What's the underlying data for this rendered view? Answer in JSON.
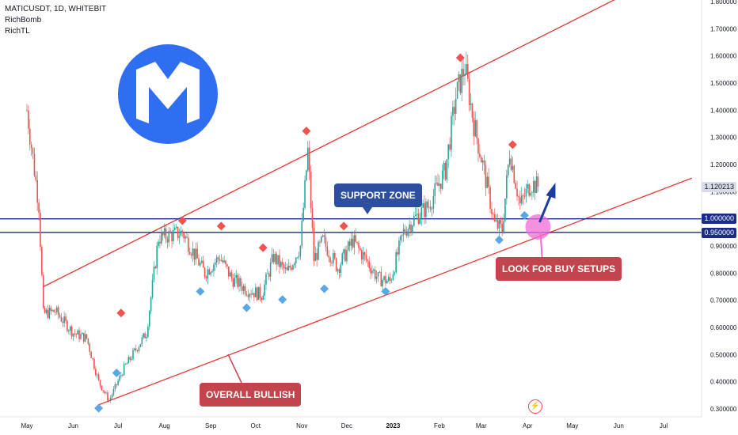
{
  "legend": {
    "symbol_line": "MATICUSDT, 1D, WHITEBIT",
    "indicator_1": "RichBomb",
    "indicator_2": "RichTL"
  },
  "logo": {
    "icon": "polygon-m-logo-icon",
    "color": "#2f6ef0"
  },
  "annotations": {
    "support_zone": "SUPPORT ZONE",
    "buy_setups": "LOOK FOR BUY SETUPS",
    "overall_bullish": "OVERALL BULLISH"
  },
  "price_tags": {
    "level_1": "1.000000",
    "level_095": "0.950000",
    "last": "1.120213"
  },
  "colors": {
    "up": "#26a69a",
    "down": "#ef5350",
    "channel": "#e53935",
    "support": "#1a2c8a",
    "buy_marker": "#5aa7e8",
    "sell_marker": "#ef5350",
    "highlight": "#f06bd6"
  },
  "chart_data": {
    "type": "line",
    "title": "MATICUSDT, 1D, WHITEBIT",
    "ylim": [
      0.28,
      1.8
    ],
    "y_ticks": [
      "1.800000",
      "1.700000",
      "1.600000",
      "1.500000",
      "1.400000",
      "1.300000",
      "1.200000",
      "1.100000",
      "1.000000",
      "0.900000",
      "0.800000",
      "0.700000",
      "0.600000",
      "0.500000",
      "0.400000",
      "0.300000"
    ],
    "x_ticks": [
      "May",
      "Jun",
      "Jul",
      "Aug",
      "Sep",
      "Oct",
      "Nov",
      "Dec",
      "2023",
      "Feb",
      "Mar",
      "Apr",
      "May",
      "Jun",
      "Jul"
    ],
    "x": [
      "2022-05-01",
      "2022-05-09",
      "2022-05-12",
      "2022-05-20",
      "2022-06-01",
      "2022-06-10",
      "2022-06-18",
      "2022-06-25",
      "2022-07-05",
      "2022-07-20",
      "2022-07-28",
      "2022-08-13",
      "2022-08-20",
      "2022-08-28",
      "2022-09-07",
      "2022-09-15",
      "2022-09-25",
      "2022-10-05",
      "2022-10-13",
      "2022-10-22",
      "2022-10-31",
      "2022-11-05",
      "2022-11-09",
      "2022-11-15",
      "2022-11-25",
      "2022-12-05",
      "2022-12-15",
      "2022-12-22",
      "2022-12-30",
      "2023-01-08",
      "2023-01-15",
      "2023-01-25",
      "2023-02-05",
      "2023-02-12",
      "2023-02-18",
      "2023-02-24",
      "2023-03-02",
      "2023-03-10",
      "2023-03-15",
      "2023-03-20",
      "2023-03-27",
      "2023-04-03",
      "2023-04-08"
    ],
    "series": [
      {
        "values": [
          1.4,
          1.05,
          0.65,
          0.66,
          0.58,
          0.56,
          0.4,
          0.33,
          0.45,
          0.58,
          0.93,
          0.95,
          0.88,
          0.8,
          0.86,
          0.78,
          0.74,
          0.72,
          0.86,
          0.8,
          0.9,
          1.25,
          0.85,
          0.92,
          0.82,
          0.92,
          0.84,
          0.78,
          0.77,
          0.95,
          1.0,
          1.05,
          1.18,
          1.45,
          1.56,
          1.35,
          1.2,
          0.98,
          0.96,
          1.25,
          1.05,
          1.13,
          1.12
        ]
      }
    ],
    "channel": {
      "upper": [
        [
          "2022-05-12",
          0.75
        ],
        [
          "2023-07-20",
          1.95
        ]
      ],
      "lower": [
        [
          "2022-06-18",
          0.315
        ],
        [
          "2023-07-20",
          1.15
        ]
      ]
    },
    "support_levels": [
      1.0,
      0.95
    ],
    "sell_signals": [
      [
        "2022-07-03",
        0.63
      ],
      [
        "2022-08-13",
        0.97
      ],
      [
        "2022-09-08",
        0.95
      ],
      [
        "2022-10-06",
        0.87
      ],
      [
        "2022-11-04",
        1.3
      ],
      [
        "2022-11-29",
        0.95
      ],
      [
        "2023-02-15",
        1.57
      ],
      [
        "2023-03-22",
        1.25
      ]
    ],
    "buy_signals": [
      [
        "2022-06-18",
        0.32
      ],
      [
        "2022-06-30",
        0.45
      ],
      [
        "2022-08-25",
        0.75
      ],
      [
        "2022-09-25",
        0.69
      ],
      [
        "2022-10-19",
        0.72
      ],
      [
        "2022-11-16",
        0.76
      ],
      [
        "2022-12-27",
        0.75
      ],
      [
        "2023-03-13",
        0.94
      ],
      [
        "2023-03-30",
        1.03
      ]
    ]
  }
}
